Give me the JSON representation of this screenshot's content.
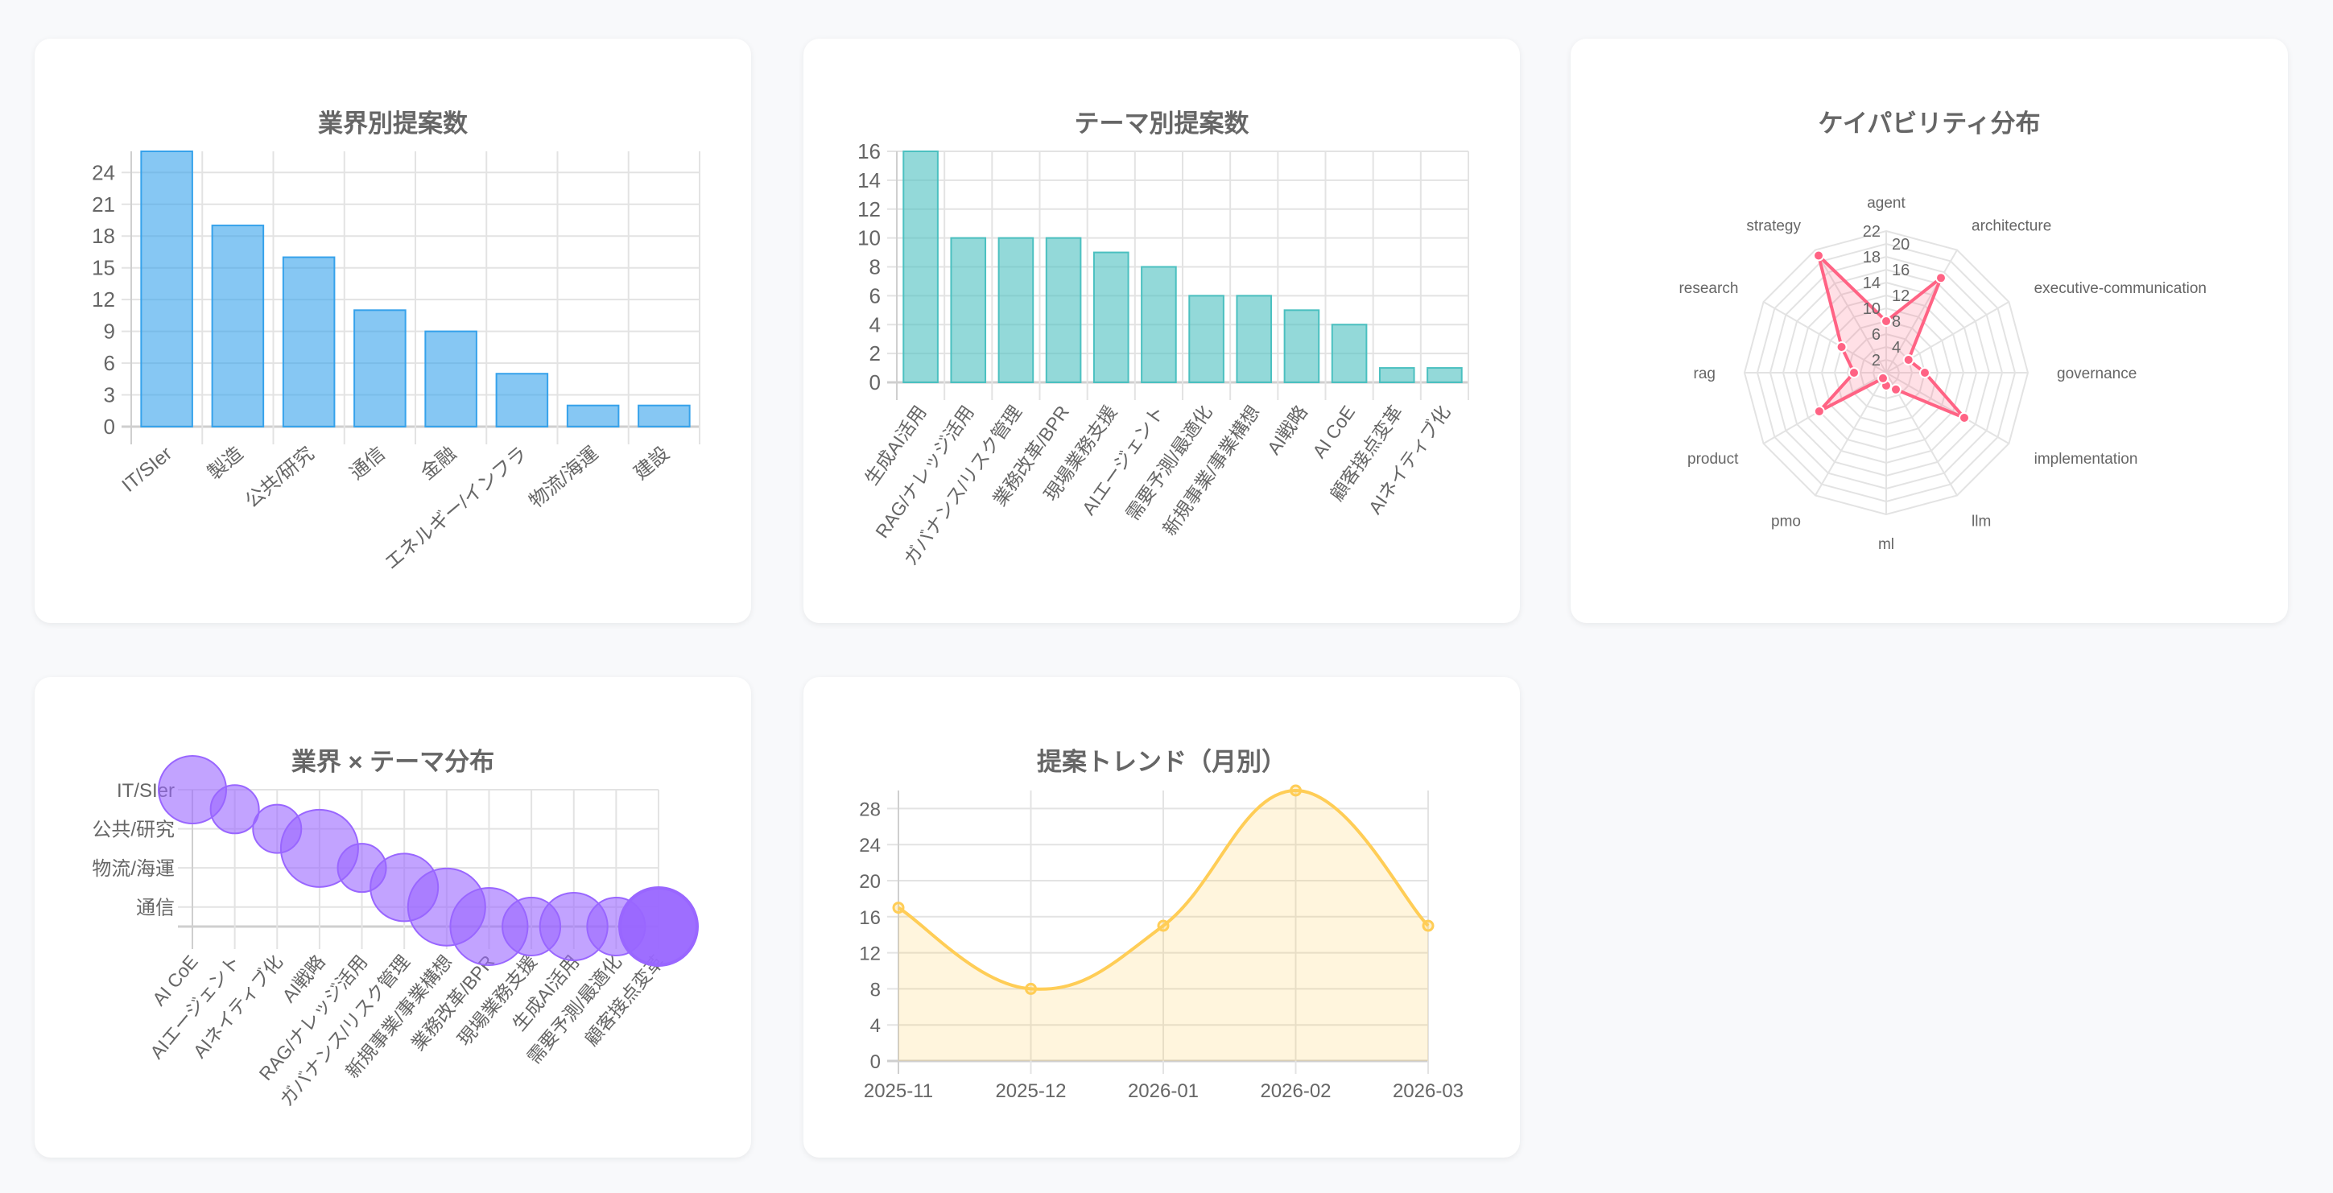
{
  "chart_data": [
    {
      "type": "bar",
      "title": "業界別提案数",
      "categories": [
        "IT/SIer",
        "製造",
        "公共/研究",
        "通信",
        "金融",
        "エネルギー/インフラ",
        "物流/海運",
        "建設"
      ],
      "values": [
        26,
        19,
        16,
        11,
        9,
        5,
        2,
        2
      ],
      "yticks": [
        "0",
        "3",
        "6",
        "9",
        "12",
        "15",
        "18",
        "21",
        "24"
      ],
      "ylim": [
        0,
        26
      ],
      "grid": true,
      "color": "#36a2eb"
    },
    {
      "type": "bar",
      "title": "テーマ別提案数",
      "categories": [
        "生成AI活用",
        "RAG/ナレッジ活用",
        "ガバナンス/リスク管理",
        "業務改革/BPR",
        "現場業務支援",
        "AIエージェント",
        "需要予測/最適化",
        "新規事業/事業構想",
        "AI戦略",
        "AI CoE",
        "顧客接点変革",
        "AIネイティブ化"
      ],
      "values": [
        16,
        10,
        10,
        10,
        9,
        8,
        6,
        6,
        5,
        4,
        1,
        1
      ],
      "yticks": [
        "0",
        "2",
        "4",
        "6",
        "8",
        "10",
        "12",
        "14",
        "16"
      ],
      "ylim": [
        0,
        16
      ],
      "grid": true,
      "color": "#4bc0c0"
    },
    {
      "type": "radar",
      "title": "ケイパビリティ分布",
      "categories": [
        "agent",
        "architecture",
        "executive-communication",
        "governance",
        "implementation",
        "llm",
        "ml",
        "pmo",
        "product",
        "rag",
        "research",
        "strategy"
      ],
      "values": [
        8,
        17,
        4,
        6,
        14,
        3,
        2,
        1,
        12,
        5,
        8,
        21
      ],
      "rticks": [
        "2",
        "4",
        "6",
        "8",
        "10",
        "12",
        "14",
        "16",
        "18",
        "20",
        "22"
      ],
      "rlim": [
        0,
        22
      ],
      "color": "#ff6384"
    },
    {
      "type": "scatter",
      "subtype": "bubble",
      "title": "業界 × テーマ分布",
      "x_categories": [
        "AI CoE",
        "AIエージェント",
        "AIネイティブ化",
        "AI戦略",
        "RAG/ナレッジ活用",
        "ガバナンス/リスク管理",
        "新規事業/事業構想",
        "業務改革/BPR",
        "現場業務支援",
        "生成AI活用",
        "需要予測/最適化",
        "顧客接点変革"
      ],
      "y_tick_labels": [
        "IT/SIer",
        "公共/研究",
        "物流/海運",
        "通信"
      ],
      "ylim": [
        0,
        3.5
      ],
      "points": [
        {
          "x": 0,
          "y": 0,
          "size": 7
        },
        {
          "x": 1,
          "y": 0.5,
          "size": 5
        },
        {
          "x": 2,
          "y": 1,
          "size": 5
        },
        {
          "x": 3,
          "y": 1.5,
          "size": 8
        },
        {
          "x": 4,
          "y": 2,
          "size": 5
        },
        {
          "x": 5,
          "y": 2.5,
          "size": 7
        },
        {
          "x": 6,
          "y": 3,
          "size": 8
        },
        {
          "x": 7,
          "y": 3.5,
          "size": 8
        },
        {
          "x": 8,
          "y": 3.5,
          "size": 6
        },
        {
          "x": 9,
          "y": 3.5,
          "size": 7
        },
        {
          "x": 10,
          "y": 3.5,
          "size": 6
        },
        {
          "x": 11,
          "y": 3.5,
          "size": 8
        }
      ],
      "color": "#9966ff"
    },
    {
      "type": "line",
      "title": "提案トレンド（月別）",
      "categories": [
        "2025-11",
        "2025-12",
        "2026-01",
        "2026-02",
        "2026-03"
      ],
      "values": [
        17,
        8,
        15,
        30,
        15
      ],
      "yticks": [
        "0",
        "4",
        "8",
        "12",
        "16",
        "20",
        "24",
        "28"
      ],
      "ylim": [
        0,
        30
      ],
      "fill": true,
      "color": "#ffcd56"
    }
  ]
}
